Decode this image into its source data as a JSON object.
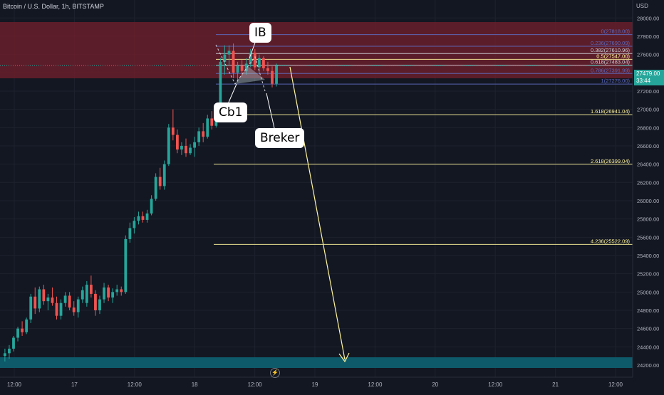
{
  "symbol": {
    "title": "Bitcoin / U.S. Dollar, 1h, BITSTAMP"
  },
  "price_axis": {
    "currency": "USD",
    "ticks": [
      "28000.00",
      "27800.00",
      "27600.00",
      "27400.00",
      "27200.00",
      "27000.00",
      "26800.00",
      "26600.00",
      "26400.00",
      "26200.00",
      "26000.00",
      "25800.00",
      "25600.00",
      "25400.00",
      "25200.00",
      "25000.00",
      "24800.00",
      "24600.00",
      "24400.00",
      "24200.00"
    ]
  },
  "time_axis": {
    "ticks": [
      "12:00",
      "17",
      "12:00",
      "18",
      "12:00",
      "19",
      "12:00",
      "20",
      "12:00",
      "21",
      "12:00"
    ]
  },
  "current_price": {
    "value": "27479.00",
    "countdown": "33:44"
  },
  "fib_levels": [
    {
      "label": "0(27818.00)",
      "color": "#5c6bc0"
    },
    {
      "label": "0.236(27690.09)",
      "color": "#5c6bc0"
    },
    {
      "label": "0.382(27610.96)",
      "color": "#d1d4dc"
    },
    {
      "label": "0.5(27547.00)",
      "color": "#fff59d"
    },
    {
      "label": "0.618(27483.04)",
      "color": "#d1d4dc"
    },
    {
      "label": "0.786(27391.99)",
      "color": "#5c6bc0"
    },
    {
      "label": "1(27276.00)",
      "color": "#5c6bc0"
    },
    {
      "label": "1.618(26941.04)",
      "color": "#fff59d"
    },
    {
      "label": "2.618(26399.04)",
      "color": "#fff59d"
    },
    {
      "label": "4.236(25522.09)",
      "color": "#fff59d"
    }
  ],
  "annotations": {
    "ib": "IB",
    "cb1": "Cb1",
    "breker": "Breker"
  },
  "icons": {
    "lightning": "lightning-icon"
  },
  "colors": {
    "background": "#131722",
    "up": "#26a69a",
    "down": "#ef5350",
    "supply_zone": "#7b2432",
    "demand_zone": "#0e5e6f",
    "projection": "#fff59d"
  },
  "chart_data": {
    "type": "candlestick",
    "timeframe": "1h",
    "yrange": [
      24130,
      28150
    ],
    "candles": [
      [
        24300,
        24380,
        24240,
        24330
      ],
      [
        24330,
        24420,
        24270,
        24380
      ],
      [
        24380,
        24520,
        24350,
        24500
      ],
      [
        24500,
        24620,
        24460,
        24600
      ],
      [
        24600,
        24680,
        24520,
        24560
      ],
      [
        24560,
        24720,
        24540,
        24700
      ],
      [
        24700,
        24980,
        24660,
        24950
      ],
      [
        24950,
        25050,
        24760,
        24820
      ],
      [
        24820,
        25060,
        24780,
        25030
      ],
      [
        25030,
        25080,
        24860,
        24900
      ],
      [
        24900,
        24980,
        24800,
        24940
      ],
      [
        24940,
        25050,
        24850,
        24880
      ],
      [
        24880,
        24950,
        24700,
        24740
      ],
      [
        24740,
        24920,
        24700,
        24880
      ],
      [
        24880,
        25000,
        24840,
        24960
      ],
      [
        24960,
        25000,
        24800,
        24830
      ],
      [
        24830,
        24900,
        24740,
        24780
      ],
      [
        24780,
        24950,
        24720,
        24920
      ],
      [
        24920,
        25060,
        24880,
        25020
      ],
      [
        24880,
        25120,
        24840,
        25080
      ],
      [
        25080,
        25180,
        24940,
        24980
      ],
      [
        24980,
        25020,
        24740,
        24800
      ],
      [
        24800,
        24960,
        24760,
        24920
      ],
      [
        24920,
        25100,
        24880,
        25050
      ],
      [
        25050,
        25080,
        24900,
        24940
      ],
      [
        24940,
        25040,
        24880,
        25000
      ],
      [
        25000,
        25080,
        24960,
        25030
      ],
      [
        25030,
        25060,
        24960,
        25000
      ],
      [
        25000,
        25620,
        24980,
        25580
      ],
      [
        25580,
        25760,
        25540,
        25700
      ],
      [
        25700,
        25820,
        25640,
        25780
      ],
      [
        25780,
        25880,
        25740,
        25830
      ],
      [
        25830,
        25880,
        25760,
        25790
      ],
      [
        25790,
        25900,
        25760,
        25860
      ],
      [
        25860,
        26060,
        25840,
        26020
      ],
      [
        26020,
        26300,
        26000,
        26260
      ],
      [
        26260,
        26360,
        26120,
        26160
      ],
      [
        26160,
        26440,
        26120,
        26400
      ],
      [
        26400,
        26840,
        26380,
        26800
      ],
      [
        26800,
        27000,
        26660,
        26720
      ],
      [
        26720,
        26780,
        26520,
        26560
      ],
      [
        26560,
        26640,
        26500,
        26600
      ],
      [
        26600,
        26680,
        26480,
        26520
      ],
      [
        26520,
        26620,
        26500,
        26580
      ],
      [
        26580,
        26700,
        26480,
        26640
      ],
      [
        26640,
        26800,
        26600,
        26760
      ],
      [
        26760,
        26850,
        26640,
        26700
      ],
      [
        26700,
        26940,
        26680,
        26900
      ],
      [
        26900,
        26980,
        26780,
        26820
      ],
      [
        26820,
        26980,
        26800,
        26950
      ],
      [
        26950,
        27560,
        26920,
        27520
      ],
      [
        27520,
        27700,
        27380,
        27600
      ],
      [
        27600,
        27700,
        27480,
        27640
      ],
      [
        27640,
        27720,
        27340,
        27400
      ],
      [
        27400,
        27520,
        27300,
        27480
      ],
      [
        27480,
        27540,
        27360,
        27420
      ],
      [
        27420,
        27560,
        27380,
        27500
      ],
      [
        27500,
        27660,
        27460,
        27620
      ],
      [
        27620,
        27660,
        27430,
        27460
      ],
      [
        27460,
        27600,
        27400,
        27560
      ],
      [
        27560,
        27580,
        27420,
        27450
      ],
      [
        27450,
        27520,
        27380,
        27420
      ],
      [
        27420,
        27470,
        27240,
        27280
      ],
      [
        27280,
        27500,
        27250,
        27479
      ]
    ]
  }
}
